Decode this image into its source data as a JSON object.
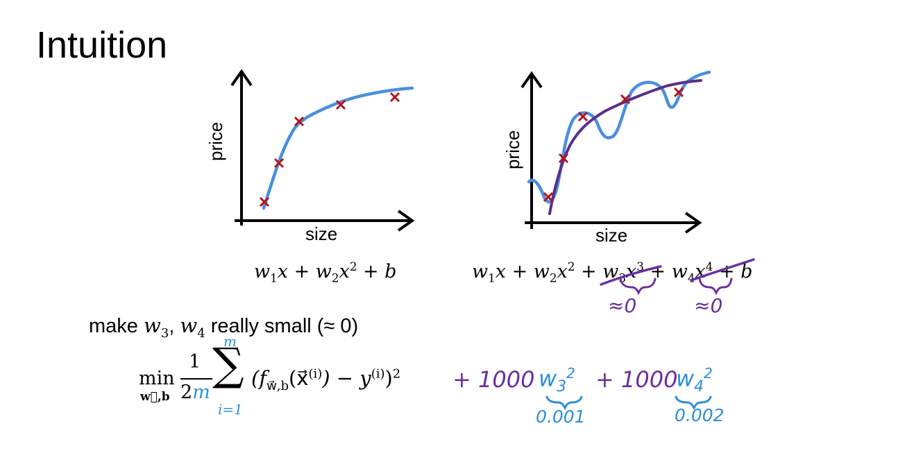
{
  "slide": {
    "title": "Intuition"
  },
  "colors": {
    "fit_blue": "#4a8fe0",
    "fit_purple": "#5b2d8e",
    "marker_red": "#b3141a",
    "ink_purple": "#6b2fa0",
    "ink_blue": "#2e8fd6"
  },
  "left_plot": {
    "y_label": "price",
    "x_label": "size",
    "expression": {
      "t1": "w",
      "s1": "1",
      "t2": "x + w",
      "s2": "2",
      "t3": "x",
      "p2": "2",
      "t4": " + b"
    }
  },
  "right_plot": {
    "y_label": "price",
    "x_label": "size",
    "expression": {
      "t1": "w",
      "s1": "1",
      "t2": "x + w",
      "s2": "2",
      "t3": "x",
      "p2": "2",
      "t4": " + w",
      "s3": "3",
      "t5": "x",
      "p3": "3",
      "t6": " + w",
      "s4": "4",
      "t7": "x",
      "p4": "4",
      "t8": " + b"
    },
    "annotations": {
      "approx_w3": "≈0",
      "approx_w4": "≈0"
    }
  },
  "statement": {
    "pre": "make ",
    "w": "w",
    "s3": "3",
    "comma": ", ",
    "w2": "w",
    "s4": "4",
    "post": " really small (≈ 0)"
  },
  "cost": {
    "min": "min",
    "min_sub": "w⃗,b",
    "frac_num": "1",
    "frac_den_2": "2",
    "frac_den_m": "m",
    "sum_top": "m",
    "sum_bottom": "i=1",
    "sum_symbol": "∑",
    "body": "(f",
    "f_sub": "w⃗,b",
    "arg": "(x⃗",
    "arg_sup": "(i)",
    "mid": ") − y",
    "y_sup": "(i)",
    "close": ")",
    "sq": "2",
    "penalty1": "+ 1000",
    "w3": "w",
    "w3_sub": "3",
    "w3_sup": "2",
    "penalty2": "+ 1000",
    "w4": "w",
    "w4_sub": "4",
    "w4_sup": "2",
    "val_w3": "0.001",
    "val_w4": "0.002"
  }
}
